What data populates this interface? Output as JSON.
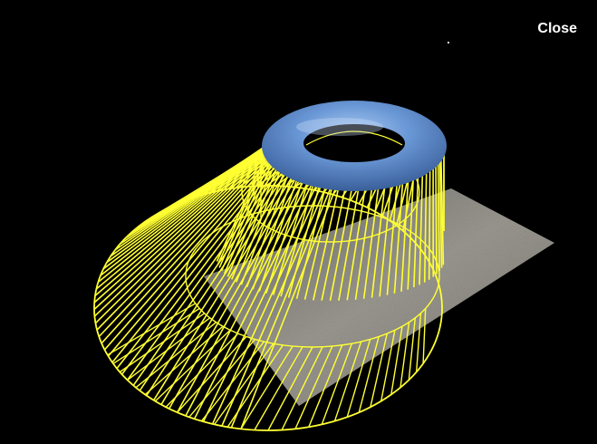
{
  "controls": {
    "close_label": "Close"
  },
  "scene": {
    "background_color": "#000000",
    "wireframe_color": "#ffff33",
    "torus_color": "#5f8fd0",
    "plane_color": "#8a8880",
    "objects": {
      "wireframe": "yellow-wireframe-shadow-volume",
      "torus": "blue-torus",
      "plane": "textured-ground-plane"
    }
  }
}
